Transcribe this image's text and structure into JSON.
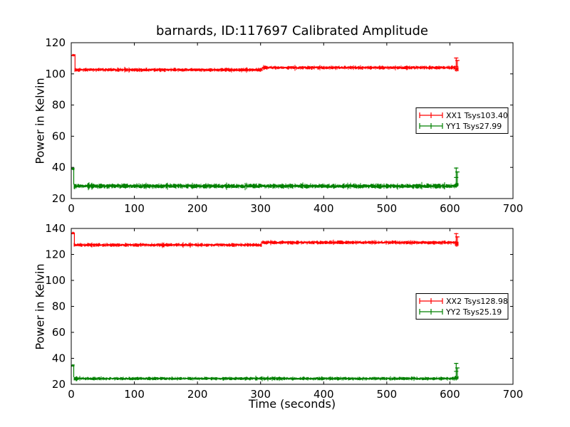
{
  "figure": {
    "background": "#ffffff",
    "title": "barnards, ID:117697 Calibrated Amplitude",
    "xlabel": "Time (seconds)",
    "ylabel": "Power in Kelvin",
    "colors": {
      "xx_series": "#ff0000",
      "yy_series": "#008000",
      "axes": "#000000",
      "text": "#000000"
    }
  },
  "chart_data": [
    {
      "type": "line",
      "subplot": "top",
      "title": "barnards, ID:117697 Calibrated Amplitude",
      "xlabel": "",
      "ylabel": "Power in Kelvin",
      "xlim": [
        0,
        700
      ],
      "ylim": [
        20,
        120
      ],
      "xticks": [
        0,
        100,
        200,
        300,
        400,
        500,
        600,
        700
      ],
      "yticks": [
        20,
        40,
        60,
        80,
        100,
        120
      ],
      "grid": false,
      "legend_position": "center-right",
      "series": [
        {
          "name": "XX1",
          "legend_label": "XX1 Tsys103.40",
          "color": "#ff0000",
          "tsys_kelvin": 103.4,
          "description": "noisy flat band ~102.6 K until t=303 s, step up to ~104 K, cal spikes at both ends",
          "segments": [
            {
              "t": [
                1,
                6
              ],
              "mean": 112.0,
              "noise_half": 0.7
            },
            {
              "t": [
                6,
                303
              ],
              "mean": 102.6,
              "noise_half": 1.0
            },
            {
              "t": [
                303,
                609
              ],
              "mean": 104.0,
              "noise_half": 1.0
            },
            {
              "t": [
                609,
                613
              ],
              "mean": 103.0,
              "noise_half": 1.4
            }
          ],
          "spikes": [
            {
              "t": 6,
              "from": 103.0,
              "to": 112.5,
              "caps": []
            },
            {
              "t": 610,
              "from": 101.5,
              "to": 110.5,
              "caps": [
                110.2,
                104.8
              ]
            },
            {
              "t": 611.8,
              "from": 102.0,
              "to": 109.0,
              "caps": [
                108.6
              ]
            }
          ]
        },
        {
          "name": "YY1",
          "legend_label": "YY1 Tsys27.99",
          "color": "#008000",
          "tsys_kelvin": 27.99,
          "description": "noisy flat band ~28 K, cal spikes to ~40 K at both ends",
          "segments": [
            {
              "t": [
                1,
                4
              ],
              "mean": 39.0,
              "noise_half": 0.7
            },
            {
              "t": [
                4,
                609
              ],
              "mean": 28.0,
              "noise_half": 1.3
            },
            {
              "t": [
                609,
                613
              ],
              "mean": 28.6,
              "noise_half": 1.6
            }
          ],
          "spikes": [
            {
              "t": 4,
              "from": 29.0,
              "to": 39.6,
              "caps": []
            },
            {
              "t": 610,
              "from": 27.0,
              "to": 40.0,
              "caps": [
                39.6,
                33.5
              ]
            },
            {
              "t": 611.8,
              "from": 27.5,
              "to": 37.5,
              "caps": [
                37.1
              ]
            }
          ]
        }
      ]
    },
    {
      "type": "line",
      "subplot": "bottom",
      "title": "",
      "xlabel": "Time (seconds)",
      "ylabel": "Power in Kelvin",
      "xlim": [
        0,
        700
      ],
      "ylim": [
        20,
        140
      ],
      "xticks": [
        0,
        100,
        200,
        300,
        400,
        500,
        600,
        700
      ],
      "yticks": [
        20,
        40,
        60,
        80,
        100,
        120,
        140
      ],
      "grid": false,
      "legend_position": "center-right",
      "series": [
        {
          "name": "XX2",
          "legend_label": "XX2 Tsys128.98",
          "color": "#ff0000",
          "tsys_kelvin": 128.98,
          "description": "noisy flat band ~127.3 K until t=302 s, step up to ~129.2 K, cal spikes at both ends",
          "segments": [
            {
              "t": [
                1,
                5
              ],
              "mean": 136.3,
              "noise_half": 0.8
            },
            {
              "t": [
                5,
                302
              ],
              "mean": 127.3,
              "noise_half": 1.2
            },
            {
              "t": [
                302,
                609
              ],
              "mean": 129.2,
              "noise_half": 1.2
            },
            {
              "t": [
                609,
                613
              ],
              "mean": 128.2,
              "noise_half": 1.7
            }
          ],
          "spikes": [
            {
              "t": 5,
              "from": 127.5,
              "to": 136.8,
              "caps": []
            },
            {
              "t": 610,
              "from": 126.0,
              "to": 136.5,
              "caps": [
                136.0,
                129.5
              ]
            },
            {
              "t": 611.8,
              "from": 126.5,
              "to": 134.0,
              "caps": [
                133.5
              ]
            }
          ]
        },
        {
          "name": "YY2",
          "legend_label": "YY2 Tsys25.19",
          "color": "#008000",
          "tsys_kelvin": 25.19,
          "description": "noisy flat band ~24.4 K, cal spikes to ~35 K at both ends",
          "segments": [
            {
              "t": [
                1,
                4
              ],
              "mean": 34.5,
              "noise_half": 0.8
            },
            {
              "t": [
                4,
                609
              ],
              "mean": 24.4,
              "noise_half": 1.1
            },
            {
              "t": [
                609,
                613
              ],
              "mean": 25.0,
              "noise_half": 1.4
            }
          ],
          "spikes": [
            {
              "t": 4,
              "from": 25.5,
              "to": 35.0,
              "caps": []
            },
            {
              "t": 610,
              "from": 23.0,
              "to": 36.5,
              "caps": [
                36.1,
                30.0
              ]
            },
            {
              "t": 611.8,
              "from": 23.5,
              "to": 33.0,
              "caps": [
                32.6
              ]
            }
          ]
        }
      ]
    }
  ]
}
